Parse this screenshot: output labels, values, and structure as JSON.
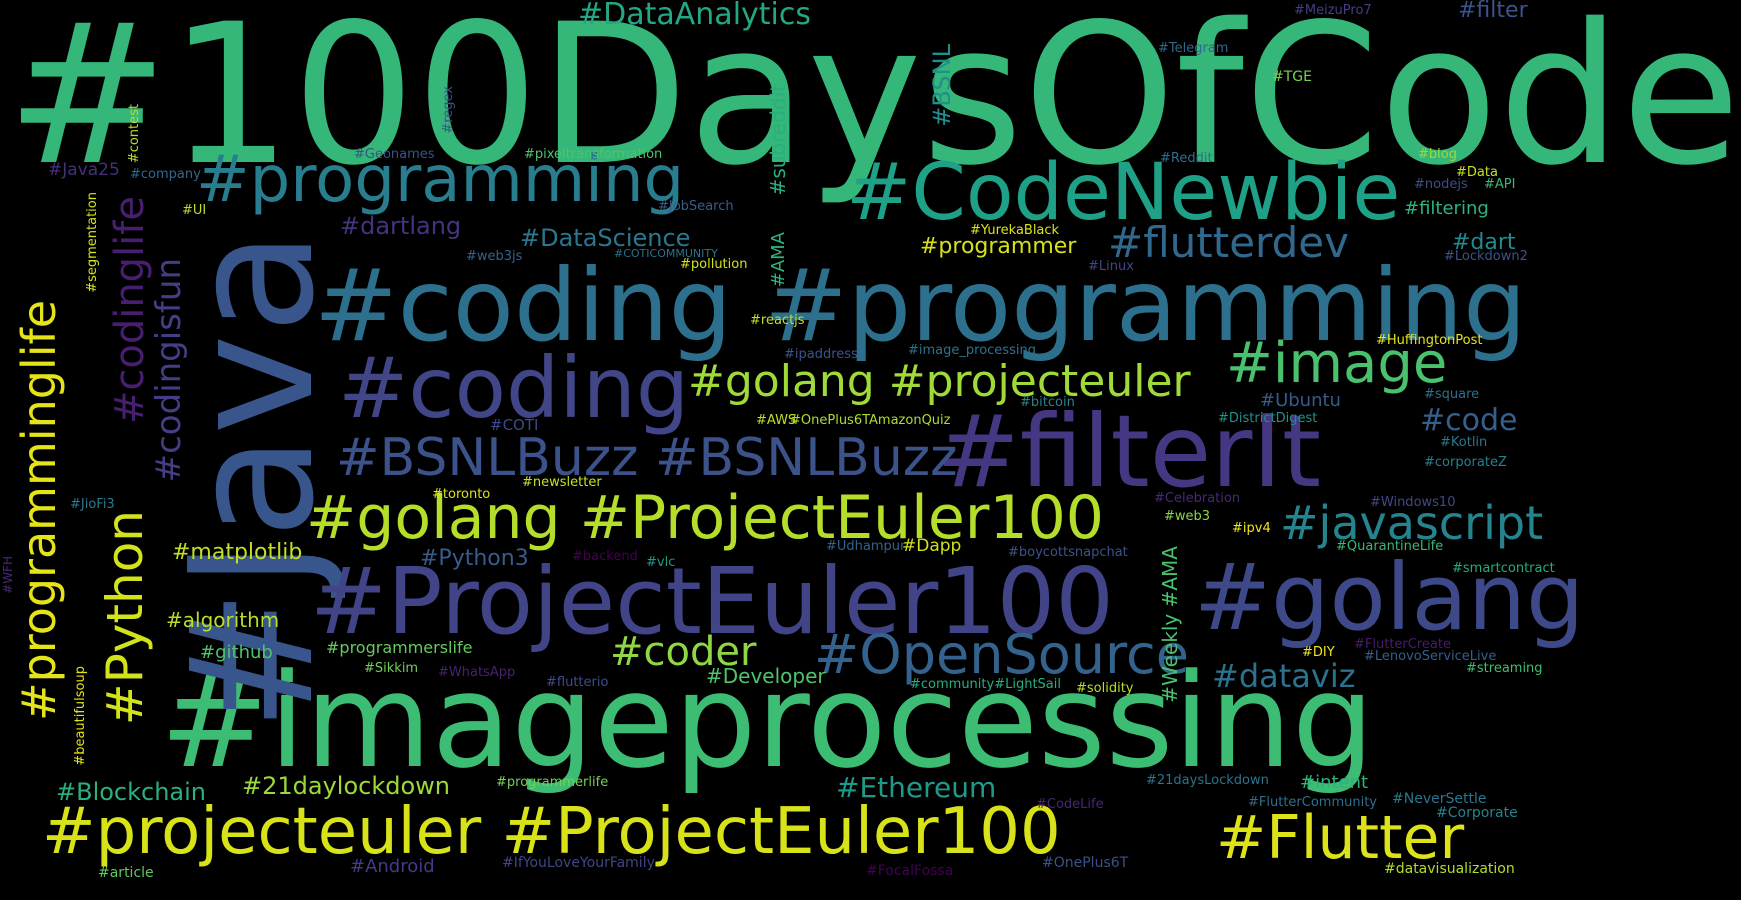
{
  "words": [
    {
      "text": "#100DaysOfCode",
      "color": "#35b779"
    },
    {
      "text": "#imageprocessing",
      "color": "#3dbc74"
    },
    {
      "text": "#Java",
      "color": "#39568c"
    },
    {
      "text": "#coding #programming",
      "color": "#2d708e"
    },
    {
      "text": "#CodeNewbie",
      "color": "#1fa187"
    },
    {
      "text": "#programming",
      "color": "#287d8e"
    },
    {
      "text": "#coding",
      "color": "#404688"
    },
    {
      "text": "#filterIt",
      "color": "#453781"
    },
    {
      "text": "#ProjectEuler100",
      "color": "#414487"
    },
    {
      "text": "#golang",
      "color": "#3e4989"
    },
    {
      "text": "#golang #ProjectEuler100",
      "color": "#b5de2b"
    },
    {
      "text": "#projecteuler #ProjectEuler100",
      "color": "#d8e219"
    },
    {
      "text": "#Flutter",
      "color": "#dde318"
    },
    {
      "text": "#BSNLBuzz #BSNLBuzz",
      "color": "#3b528b"
    },
    {
      "text": "#golang #projecteuler",
      "color": "#a0da39"
    },
    {
      "text": "#image",
      "color": "#4ac16d"
    },
    {
      "text": "#OpenSource",
      "color": "#33638d"
    },
    {
      "text": "#javascript",
      "color": "#25858e"
    },
    {
      "text": "#flutterdev",
      "color": "#31688e"
    },
    {
      "text": "#coder",
      "color": "#8fd744"
    },
    {
      "text": "#programminglife",
      "color": "#e5e419"
    },
    {
      "text": "#Python",
      "color": "#d2e21b"
    },
    {
      "text": "#codinglife",
      "color": "#481f70"
    },
    {
      "text": "#codingisfun",
      "color": "#433e85"
    },
    {
      "text": "#DataAnalytics",
      "color": "#22a884"
    },
    {
      "text": "#dataviz",
      "color": "#2c728e"
    },
    {
      "text": "#code",
      "color": "#355f8d"
    },
    {
      "text": "#Ethereum",
      "color": "#1f9a8a"
    },
    {
      "text": "#21daylockdown",
      "color": "#9dd93b"
    },
    {
      "text": "#Blockchain",
      "color": "#2ab07f"
    },
    {
      "text": "#matplotlib",
      "color": "#c0df25"
    },
    {
      "text": "#algorithm",
      "color": "#b8de29"
    },
    {
      "text": "#github",
      "color": "#4ec36b"
    },
    {
      "text": "#Python3",
      "color": "#365c8d"
    },
    {
      "text": "#DataScience",
      "color": "#2a778e"
    },
    {
      "text": "#dartlang",
      "color": "#46327e"
    },
    {
      "text": "#programmer",
      "color": "#d5e21a"
    },
    {
      "text": "#Developer",
      "color": "#4fc46a"
    },
    {
      "text": "#dart",
      "color": "#238a8d"
    },
    {
      "text": "#filtering",
      "color": "#2eb37c"
    },
    {
      "text": "#filter",
      "color": "#3a548c"
    },
    {
      "text": "#Ubuntu",
      "color": "#38598c"
    },
    {
      "text": "#intent",
      "color": "#2db27d"
    },
    {
      "text": "#subreddit",
      "color": "#29af7f"
    },
    {
      "text": "#AMA",
      "color": "#2fb47c"
    },
    {
      "text": "#BSNL",
      "color": "#21908d"
    },
    {
      "text": "#Weekly #AMA",
      "color": "#4ac16d"
    },
    {
      "text": "#programmerslife",
      "color": "#65cb5e"
    },
    {
      "text": "#21daysLockdown",
      "color": "#2b748e"
    },
    {
      "text": "#FlutterCommunity",
      "color": "#2e6f8e"
    },
    {
      "text": "#NeverSettle",
      "color": "#2a768e"
    },
    {
      "text": "#Corporate",
      "color": "#25838e"
    },
    {
      "text": "#datavisualization",
      "color": "#b2dd2d"
    },
    {
      "text": "#Android",
      "color": "#443b84"
    },
    {
      "text": "#IfYouLoveYourFamily",
      "color": "#404588"
    },
    {
      "text": "#FocalFossa",
      "color": "#440154"
    },
    {
      "text": "#OnePlus6T",
      "color": "#3b518b"
    },
    {
      "text": "#CodeLife",
      "color": "#482475"
    },
    {
      "text": "#article",
      "color": "#5ec962"
    },
    {
      "text": "#programmerlife",
      "color": "#73d056"
    },
    {
      "text": "#beautifulsoup",
      "color": "#e2e418"
    },
    {
      "text": "#WFH",
      "color": "#482677"
    },
    {
      "text": "#JioFi3",
      "color": "#2a788e"
    },
    {
      "text": "#toronto",
      "color": "#dde318"
    },
    {
      "text": "#newsletter",
      "color": "#c8e020"
    },
    {
      "text": "#backend",
      "color": "#440154"
    },
    {
      "text": "#vlc",
      "color": "#1e9b8a"
    },
    {
      "text": "#Udhampur",
      "color": "#33628d"
    },
    {
      "text": "#Dapp",
      "color": "#d0e11c"
    },
    {
      "text": "#boycottsnapchat",
      "color": "#3b528b"
    },
    {
      "text": "#COTI",
      "color": "#3e4a89"
    },
    {
      "text": "#AWS",
      "color": "#c2df23"
    },
    {
      "text": "#OnePlus6TAmazonQuiz",
      "color": "#addc30"
    },
    {
      "text": "#bitcoin",
      "color": "#26828e"
    },
    {
      "text": "#DistrictDigest",
      "color": "#21918c"
    },
    {
      "text": "#Kotlin",
      "color": "#2a788e"
    },
    {
      "text": "#corporateZ",
      "color": "#26818e"
    },
    {
      "text": "#Windows10",
      "color": "#3f4889"
    },
    {
      "text": "#web3",
      "color": "#8bd646"
    },
    {
      "text": "#ipv4",
      "color": "#efe51c"
    },
    {
      "text": "#QuarantineLife",
      "color": "#37b878"
    },
    {
      "text": "#smartcontract",
      "color": "#25ab82"
    },
    {
      "text": "#Celebration",
      "color": "#482878"
    },
    {
      "text": "#Sikkim",
      "color": "#73d056"
    },
    {
      "text": "#WhatsApp",
      "color": "#482173"
    },
    {
      "text": "#flutterio",
      "color": "#3e4c8a"
    },
    {
      "text": "#community#LightSail",
      "color": "#29af7f"
    },
    {
      "text": "#solidity",
      "color": "#bade28"
    },
    {
      "text": "#DIY",
      "color": "#f1e51d"
    },
    {
      "text": "#FlutterCreate",
      "color": "#481b6d"
    },
    {
      "text": "#LenovoServiceLive",
      "color": "#365d8d"
    },
    {
      "text": "#streaming",
      "color": "#40bd72"
    },
    {
      "text": "#HuffingtonPost",
      "color": "#e2e418"
    },
    {
      "text": "#square",
      "color": "#2d718e"
    },
    {
      "text": "#image_processing",
      "color": "#2c718e"
    },
    {
      "text": "#ipaddress",
      "color": "#3a548c"
    },
    {
      "text": "#reactjs",
      "color": "#c2df23"
    },
    {
      "text": "#pollution",
      "color": "#d2e21b"
    },
    {
      "text": "#COTICOMMUNITY",
      "color": "#2d718e"
    },
    {
      "text": "#web3js",
      "color": "#33638d"
    },
    {
      "text": "#JobSearch",
      "color": "#355e8d"
    },
    {
      "text": "#Linux",
      "color": "#3f4788"
    },
    {
      "text": "#YurekaBlack",
      "color": "#dde318"
    },
    {
      "text": "#Lockdown2",
      "color": "#3b528b"
    },
    {
      "text": "#Geonames",
      "color": "#3b528b"
    },
    {
      "text": "#pixeltransformation",
      "color": "#4ec36b"
    },
    {
      "text": "#Java25",
      "color": "#472f7d"
    },
    {
      "text": "#company",
      "color": "#31678e"
    },
    {
      "text": "#UI",
      "color": "#b8de29"
    },
    {
      "text": "#segmentation",
      "color": "#d8e219"
    },
    {
      "text": "#contest",
      "color": "#b5de2b"
    },
    {
      "text": "#regex",
      "color": "#3b528b"
    },
    {
      "text": "#Reddit",
      "color": "#2e6e8e"
    },
    {
      "text": "#blog",
      "color": "#9dd93b"
    },
    {
      "text": "#Data",
      "color": "#c8e020"
    },
    {
      "text": "#nodejs",
      "color": "#3d4e8a"
    },
    {
      "text": "#API",
      "color": "#38b977"
    },
    {
      "text": "#MeizuPro7",
      "color": "#433e85"
    },
    {
      "text": "#Telegram",
      "color": "#31688e"
    },
    {
      "text": "#TGE",
      "color": "#7ad151"
    }
  ]
}
